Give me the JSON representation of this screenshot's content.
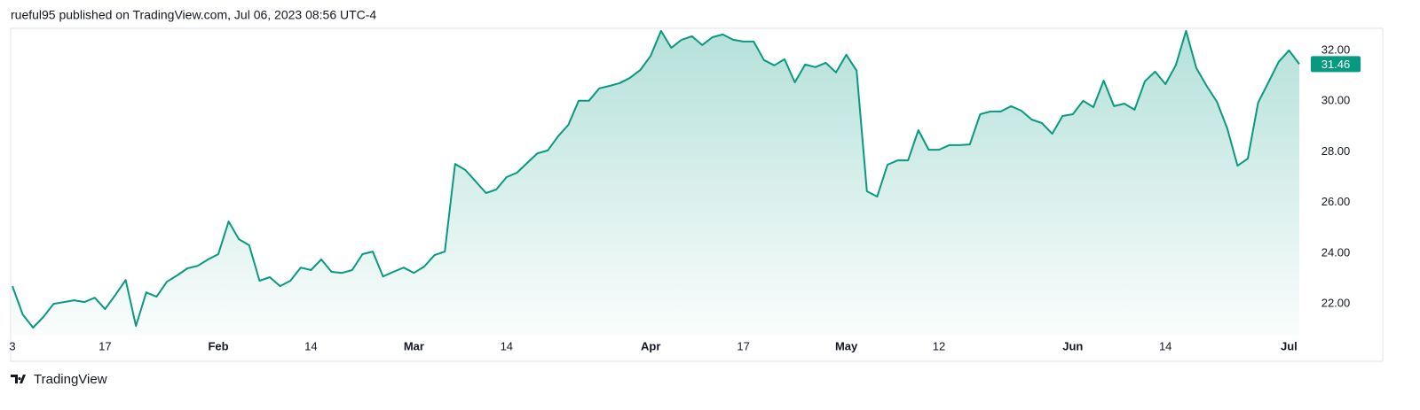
{
  "header": {
    "title": "rueful95 published on TradingView.com, Jul 06, 2023 08:56 UTC-4"
  },
  "chart_data": {
    "type": "area",
    "categories": [
      "3",
      null,
      null,
      null,
      null,
      null,
      null,
      null,
      null,
      "17",
      null,
      null,
      null,
      null,
      null,
      null,
      null,
      null,
      null,
      null,
      "Feb",
      null,
      null,
      null,
      null,
      null,
      null,
      null,
      null,
      "14",
      null,
      null,
      null,
      null,
      null,
      null,
      null,
      null,
      null,
      "Mar",
      null,
      null,
      null,
      null,
      null,
      null,
      null,
      null,
      "14",
      null,
      null,
      null,
      null,
      null,
      null,
      null,
      null,
      null,
      null,
      null,
      null,
      null,
      "Apr",
      null,
      null,
      null,
      null,
      null,
      null,
      null,
      null,
      "17",
      null,
      null,
      null,
      null,
      null,
      null,
      null,
      null,
      null,
      "May",
      null,
      null,
      null,
      null,
      null,
      null,
      null,
      null,
      "12",
      null,
      null,
      null,
      null,
      null,
      null,
      null,
      null,
      null,
      null,
      null,
      null,
      "Jun",
      null,
      null,
      null,
      null,
      null,
      null,
      null,
      null,
      "14",
      null,
      null,
      null,
      null,
      null,
      null,
      null,
      null,
      null,
      null,
      null,
      "Jul",
      null
    ],
    "series": [
      {
        "color": "#089981",
        "values": [
          22.7,
          21.58,
          21.06,
          21.48,
          22.0,
          22.07,
          22.14,
          22.07,
          22.24,
          21.79,
          22.35,
          22.94,
          21.13,
          22.45,
          22.28,
          22.87,
          23.12,
          23.4,
          23.5,
          23.75,
          23.96,
          25.25,
          24.55,
          24.31,
          22.91,
          23.05,
          22.7,
          22.91,
          23.43,
          23.33,
          23.75,
          23.26,
          23.22,
          23.33,
          23.96,
          24.06,
          23.08,
          23.26,
          23.43,
          23.22,
          23.47,
          23.92,
          24.06,
          27.52,
          27.28,
          26.83,
          26.37,
          26.51,
          27.0,
          27.17,
          27.56,
          27.94,
          28.05,
          28.61,
          29.06,
          30.01,
          30.01,
          30.5,
          30.6,
          30.71,
          30.92,
          31.23,
          31.79,
          32.77,
          32.1,
          32.42,
          32.56,
          32.21,
          32.52,
          32.63,
          32.42,
          32.35,
          32.35,
          31.62,
          31.41,
          31.65,
          30.74,
          31.44,
          31.34,
          31.51,
          31.13,
          31.83,
          31.2,
          26.44,
          26.23,
          27.49,
          27.66,
          27.66,
          28.85,
          28.08,
          28.08,
          28.26,
          28.26,
          28.29,
          29.48,
          29.59,
          29.59,
          29.8,
          29.62,
          29.27,
          29.13,
          28.71,
          29.41,
          29.48,
          30.01,
          29.76,
          30.81,
          29.8,
          29.9,
          29.66,
          30.78,
          31.16,
          30.67,
          31.41,
          32.77,
          31.3,
          30.6,
          29.97,
          28.92,
          27.45,
          27.73,
          29.94,
          30.74,
          31.55,
          32.0,
          31.46
        ]
      }
    ],
    "ylim": [
      20.78,
      32.87
    ],
    "yticks": [
      {
        "value": 22,
        "label": "22.00"
      },
      {
        "value": 24,
        "label": "24.00"
      },
      {
        "value": 26,
        "label": "26.00"
      },
      {
        "value": 28,
        "label": "28.00"
      },
      {
        "value": 30,
        "label": "30.00"
      },
      {
        "value": 32,
        "label": "32.00"
      }
    ],
    "grid": false
  },
  "footer": {
    "brand": "TradingView"
  }
}
